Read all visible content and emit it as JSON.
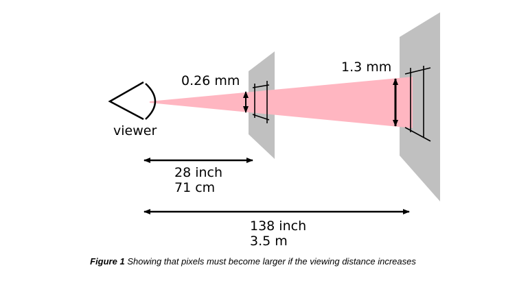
{
  "viewer_label": "viewer",
  "near_screen": {
    "pixel_size": "0.26 mm",
    "distance_inch": "28 inch",
    "distance_cm": "71 cm"
  },
  "far_screen": {
    "pixel_size": "1.3 mm",
    "distance_inch": "138 inch",
    "distance_m": "3.5 m"
  },
  "caption": {
    "label": "Figure 1",
    "text": "Showing that pixels must become larger if the viewing distance increases"
  },
  "colors": {
    "beam": "#ffb6c1",
    "screen": "#c0c0c0",
    "ink": "#000000"
  }
}
